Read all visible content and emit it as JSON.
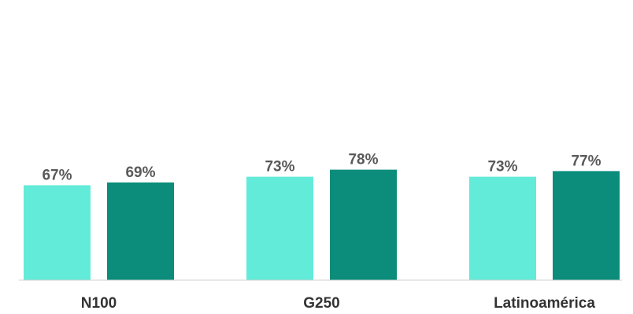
{
  "chart_data": {
    "type": "bar",
    "categories": [
      "N100",
      "G250",
      "Latinoamérica"
    ],
    "series": [
      {
        "values": [
          67,
          73,
          73
        ],
        "color": "#63EBD9"
      },
      {
        "values": [
          69,
          78,
          77
        ],
        "color": "#0C8D7B"
      }
    ],
    "value_labels": [
      [
        "67%",
        "73%",
        "73%"
      ],
      [
        "69%",
        "78%",
        "77%"
      ]
    ],
    "title": "",
    "xlabel": "",
    "ylabel": "",
    "ylim": [
      0,
      100
    ],
    "grid": false,
    "legend": "none"
  }
}
